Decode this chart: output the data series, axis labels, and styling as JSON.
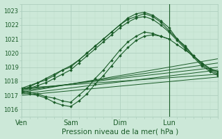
{
  "bg_color": "#cce8d8",
  "grid_major_color": "#aaccbb",
  "grid_minor_color": "#bbddc8",
  "line_color": "#1a5c28",
  "xlabel": "Pression niveau de la mer( hPa )",
  "xlabel_fontsize": 7.5,
  "ylim": [
    1015.5,
    1023.5
  ],
  "yticks": [
    1016,
    1017,
    1018,
    1019,
    1020,
    1021,
    1022,
    1023
  ],
  "xtick_labels": [
    "Ven",
    "Sam",
    "Dim",
    "Lun"
  ],
  "xtick_positions": [
    0,
    72,
    144,
    216
  ],
  "xlim": [
    0,
    288
  ],
  "vline_x": 216,
  "straight_lines": [
    {
      "x0": 0,
      "y0": 1017.5,
      "x1": 288,
      "y1": 1018.5
    },
    {
      "x0": 0,
      "y0": 1017.4,
      "x1": 288,
      "y1": 1019.0
    },
    {
      "x0": 0,
      "y0": 1017.3,
      "x1": 288,
      "y1": 1019.3
    },
    {
      "x0": 0,
      "y0": 1017.2,
      "x1": 288,
      "y1": 1019.6
    },
    {
      "x0": 0,
      "y0": 1017.1,
      "x1": 288,
      "y1": 1018.8
    },
    {
      "x0": 0,
      "y0": 1017.0,
      "x1": 288,
      "y1": 1018.3
    }
  ],
  "jagged_lines": [
    {
      "x": [
        0,
        12,
        24,
        36,
        48,
        60,
        72,
        84,
        96,
        108,
        120,
        132,
        144,
        156,
        168,
        180,
        192,
        204,
        216,
        228,
        240,
        252,
        264,
        276,
        288
      ],
      "y": [
        1017.5,
        1017.7,
        1017.9,
        1018.1,
        1018.4,
        1018.8,
        1019.0,
        1019.5,
        1020.0,
        1020.5,
        1021.0,
        1021.5,
        1022.0,
        1022.5,
        1022.8,
        1022.9,
        1022.7,
        1022.3,
        1021.8,
        1021.0,
        1020.5,
        1019.8,
        1019.3,
        1018.9,
        1018.6
      ]
    },
    {
      "x": [
        0,
        12,
        24,
        36,
        48,
        60,
        72,
        84,
        96,
        108,
        120,
        132,
        144,
        156,
        168,
        180,
        192,
        204,
        216,
        228,
        240,
        252,
        264,
        276,
        288
      ],
      "y": [
        1017.4,
        1017.5,
        1017.7,
        1017.9,
        1018.2,
        1018.5,
        1018.8,
        1019.3,
        1019.8,
        1020.3,
        1020.8,
        1021.3,
        1021.8,
        1022.2,
        1022.5,
        1022.6,
        1022.4,
        1022.0,
        1021.5,
        1020.9,
        1020.3,
        1019.7,
        1019.1,
        1018.7,
        1018.4
      ]
    },
    {
      "x": [
        0,
        12,
        24,
        36,
        48,
        60,
        72,
        84,
        96,
        108,
        120,
        132,
        144,
        156,
        168,
        180,
        192,
        204,
        216,
        228,
        240,
        252,
        264,
        276,
        288
      ],
      "y": [
        1017.3,
        1017.2,
        1017.1,
        1016.9,
        1016.8,
        1016.6,
        1016.5,
        1017.0,
        1017.5,
        1018.2,
        1018.8,
        1019.5,
        1020.2,
        1020.8,
        1021.2,
        1021.5,
        1021.4,
        1021.2,
        1021.0,
        1020.6,
        1020.2,
        1019.8,
        1019.3,
        1018.9,
        1018.7
      ]
    },
    {
      "x": [
        0,
        12,
        24,
        36,
        48,
        60,
        72,
        84,
        96,
        108,
        120,
        132,
        144,
        156,
        168,
        180,
        192,
        204,
        216
      ],
      "y": [
        1017.2,
        1017.1,
        1017.0,
        1016.8,
        1016.5,
        1016.3,
        1016.2,
        1016.6,
        1017.1,
        1017.8,
        1018.4,
        1019.1,
        1019.8,
        1020.4,
        1020.9,
        1021.2,
        1021.3,
        1021.2,
        1021.0
      ]
    },
    {
      "x": [
        0,
        12,
        24,
        36,
        48,
        60,
        72,
        84,
        96,
        108,
        120,
        132,
        144,
        156,
        168,
        180,
        192,
        204,
        216,
        228,
        240,
        252,
        264,
        276,
        288
      ],
      "y": [
        1017.4,
        1017.6,
        1017.9,
        1018.2,
        1018.5,
        1018.8,
        1019.1,
        1019.5,
        1020.0,
        1020.5,
        1021.0,
        1021.5,
        1022.0,
        1022.4,
        1022.6,
        1022.8,
        1022.6,
        1022.2,
        1021.6,
        1021.0,
        1020.4,
        1019.8,
        1019.2,
        1018.8,
        1018.5
      ]
    }
  ],
  "ytick_fontsize": 6,
  "xtick_fontsize": 7
}
